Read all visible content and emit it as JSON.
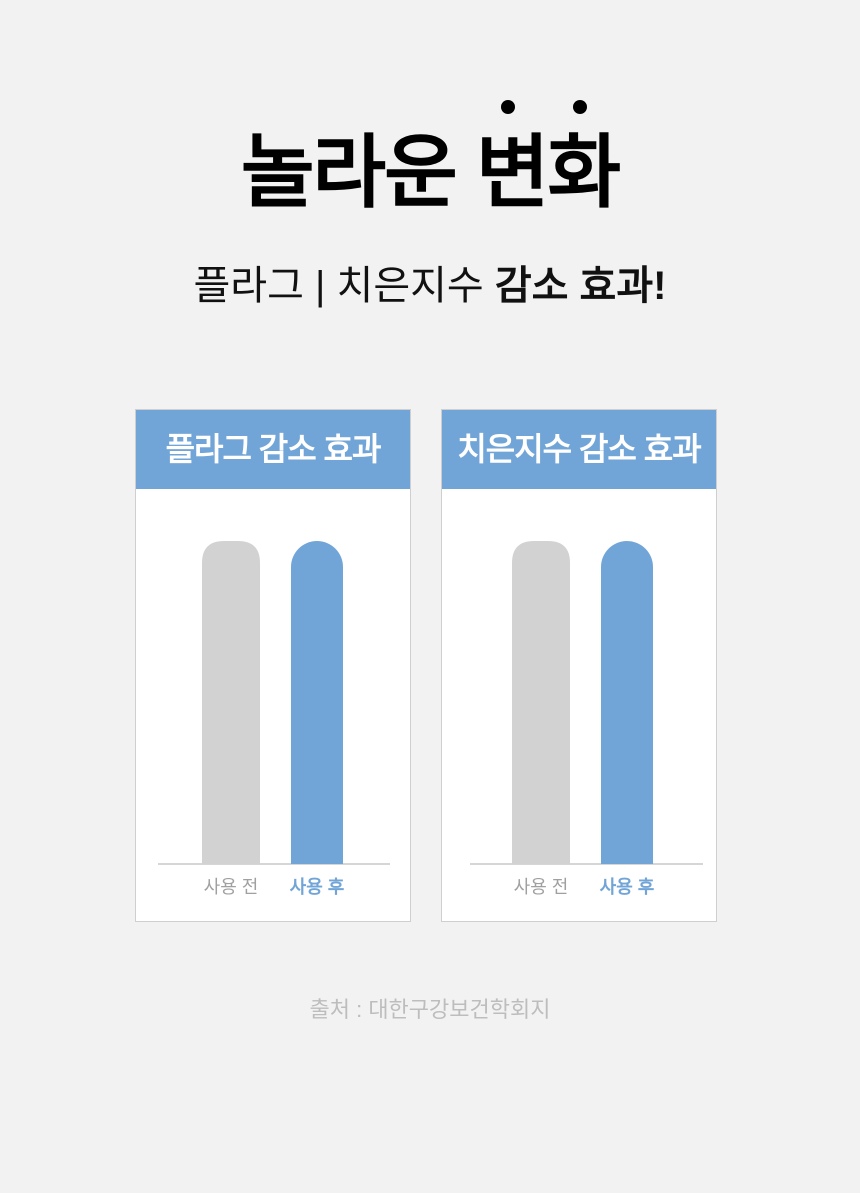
{
  "header": {
    "title": "놀라운 변화",
    "subtitle_regular": "플라그 | 치은지수",
    "subtitle_bold": "감소 효과!"
  },
  "colors": {
    "accent": "#72a5d7",
    "before_bar": "#d2d2d2",
    "after_label": "#72a5d7",
    "before_label": "#a0a0a0"
  },
  "chart_data": [
    {
      "type": "bar",
      "title": "플라그 감소 효과",
      "categories": [
        "사용 전",
        "사용 후"
      ],
      "values": [
        100,
        100
      ],
      "grid": false
    },
    {
      "type": "bar",
      "title": "치은지수 감소 효과",
      "categories": [
        "사용 전",
        "사용 후"
      ],
      "values": [
        100,
        100
      ],
      "grid": false
    }
  ],
  "footer": {
    "source": "출처 : 대한구강보건학회지"
  }
}
